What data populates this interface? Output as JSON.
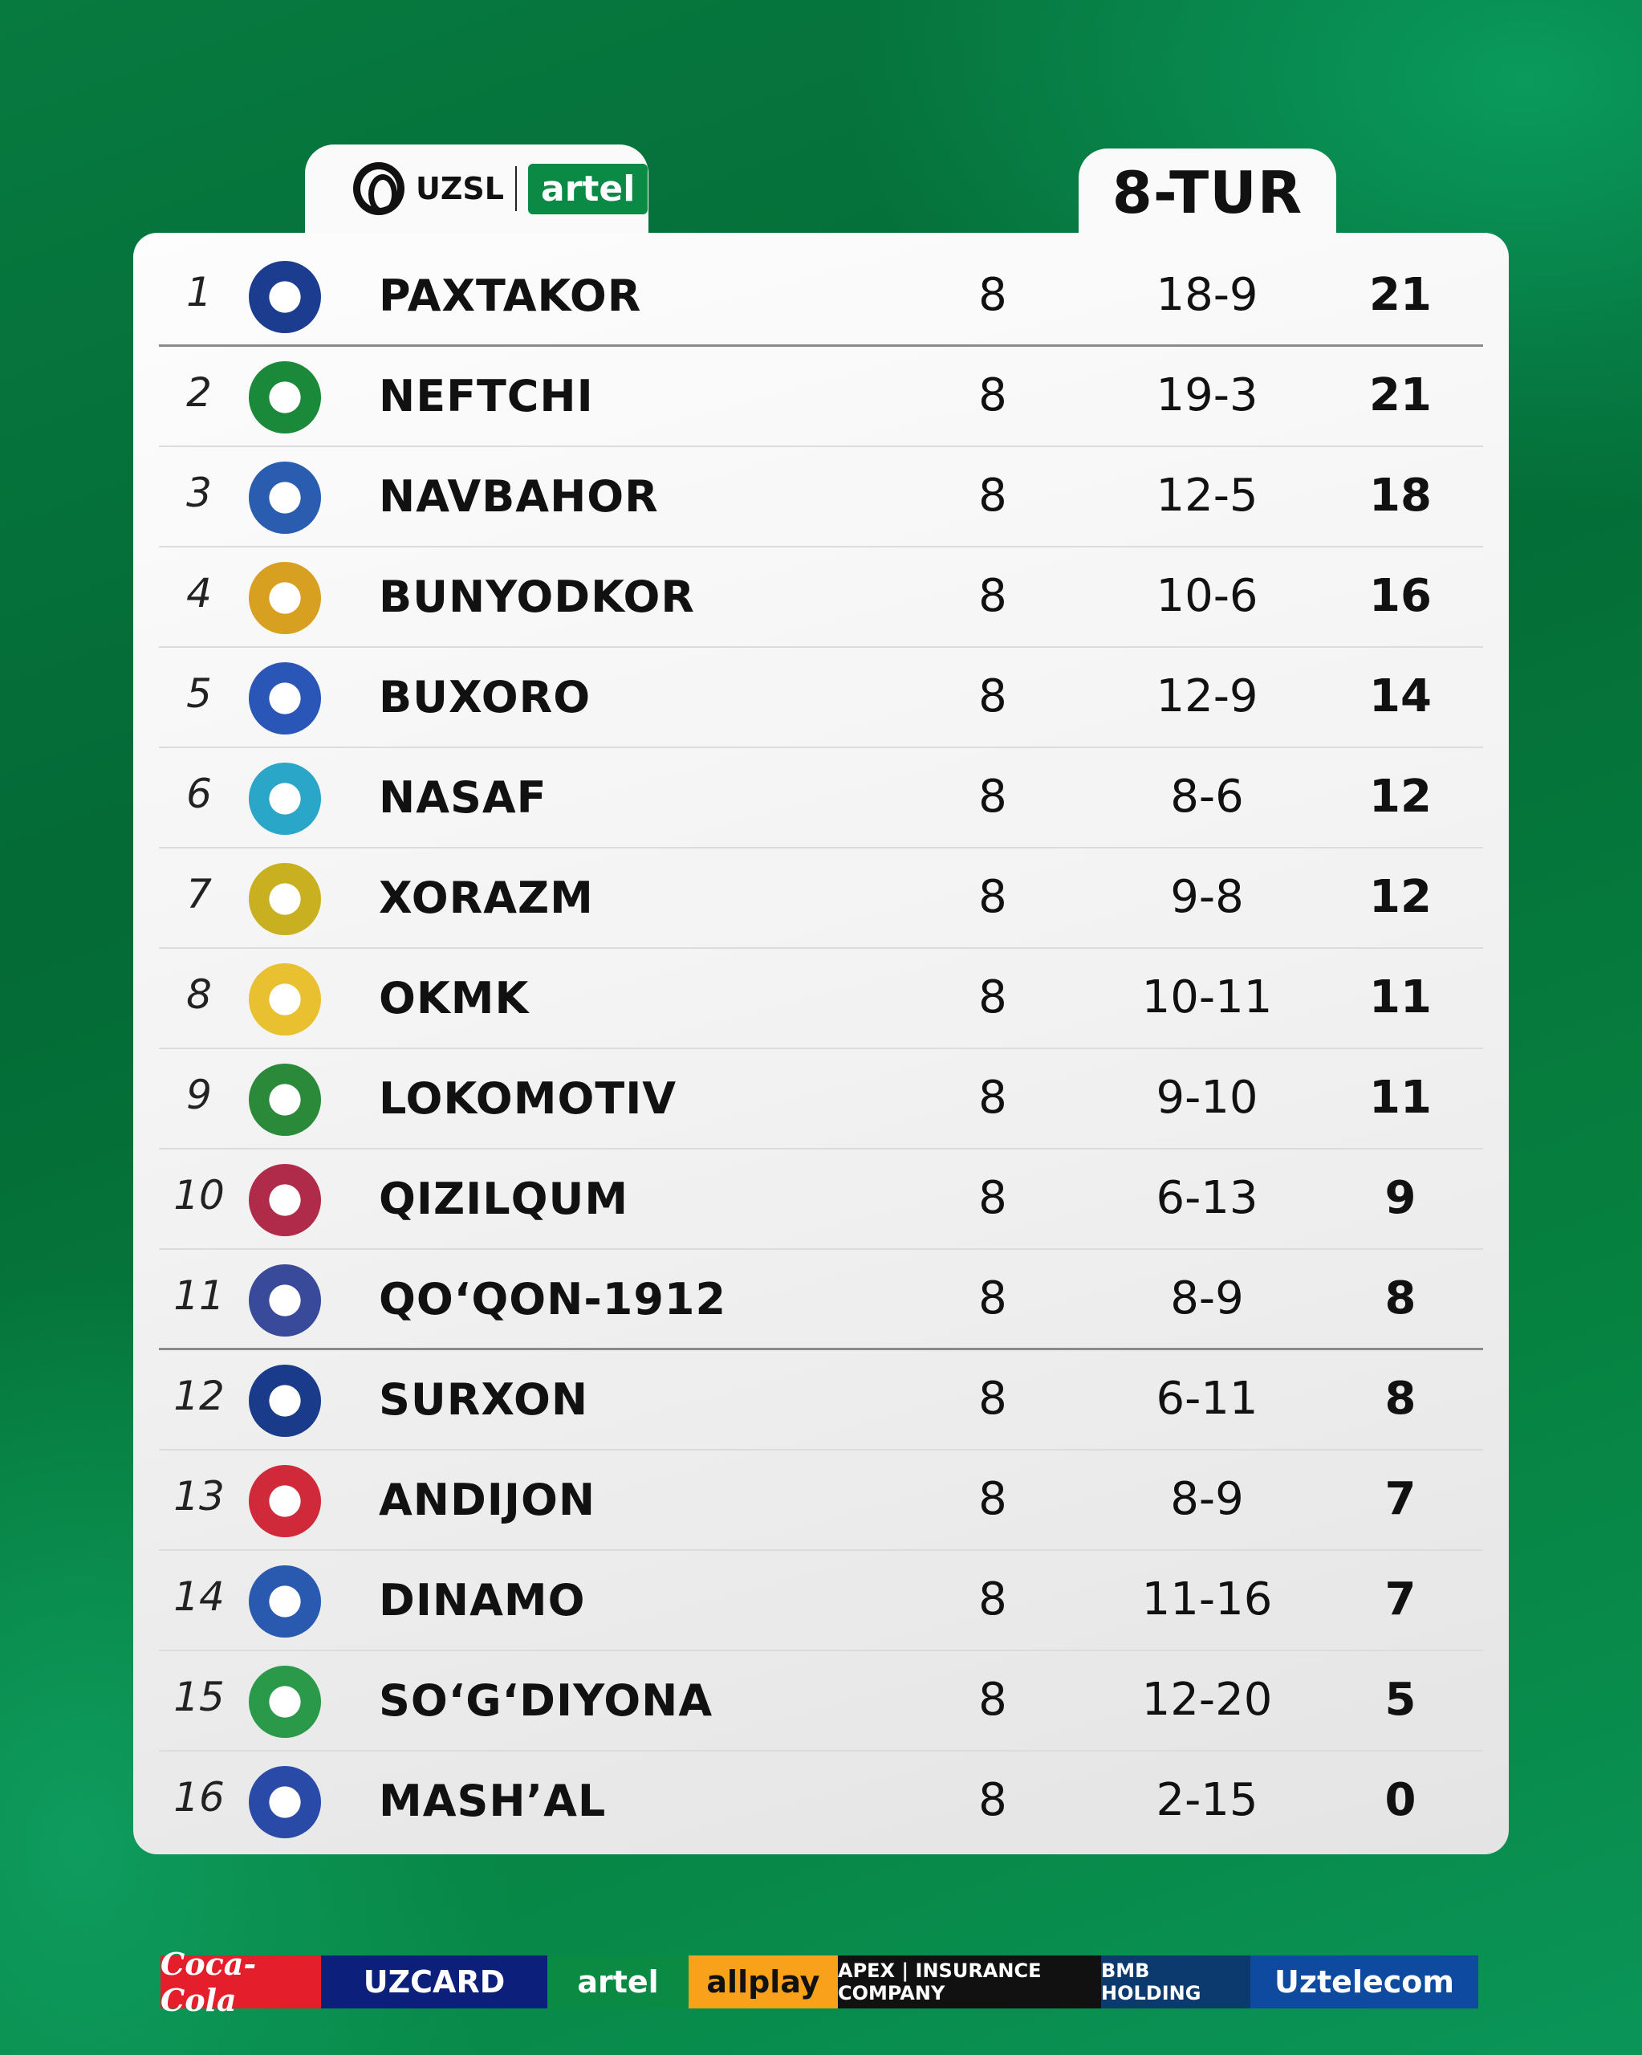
{
  "header": {
    "league_logo": "UZSL",
    "sponsor_logo": "artel",
    "round": "8-TUR"
  },
  "standings": [
    {
      "rank": "1",
      "team": "PAXTAKOR",
      "played": "8",
      "goals": "18-9",
      "points": "21",
      "color": "#1b3c8f"
    },
    {
      "rank": "2",
      "team": "NEFTCHI",
      "played": "8",
      "goals": "19-3",
      "points": "21",
      "color": "#1a8a3a"
    },
    {
      "rank": "3",
      "team": "NAVBAHOR",
      "played": "8",
      "goals": "12-5",
      "points": "18",
      "color": "#2a5db0"
    },
    {
      "rank": "4",
      "team": "BUNYODKOR",
      "played": "8",
      "goals": "10-6",
      "points": "16",
      "color": "#d8a020"
    },
    {
      "rank": "5",
      "team": "BUXORO",
      "played": "8",
      "goals": "12-9",
      "points": "14",
      "color": "#2a56b8"
    },
    {
      "rank": "6",
      "team": "NASAF",
      "played": "8",
      "goals": "8-6",
      "points": "12",
      "color": "#2aa6c8"
    },
    {
      "rank": "7",
      "team": "XORAZM",
      "played": "8",
      "goals": "9-8",
      "points": "12",
      "color": "#c8b020"
    },
    {
      "rank": "8",
      "team": "OKMK",
      "played": "8",
      "goals": "10-11",
      "points": "11",
      "color": "#e8c030"
    },
    {
      "rank": "9",
      "team": "LOKOMOTIV",
      "played": "8",
      "goals": "9-10",
      "points": "11",
      "color": "#2a8a3a"
    },
    {
      "rank": "10",
      "team": "QIZILQUM",
      "played": "8",
      "goals": "6-13",
      "points": "9",
      "color": "#b02a4a"
    },
    {
      "rank": "11",
      "team": "QO‘QON-1912",
      "played": "8",
      "goals": "8-9",
      "points": "8",
      "color": "#3a4a9a"
    },
    {
      "rank": "12",
      "team": "SURXON",
      "played": "8",
      "goals": "6-11",
      "points": "8",
      "color": "#1a3a8a"
    },
    {
      "rank": "13",
      "team": "ANDIJON",
      "played": "8",
      "goals": "8-9",
      "points": "7",
      "color": "#d02a3a"
    },
    {
      "rank": "14",
      "team": "DINAMO",
      "played": "8",
      "goals": "11-16",
      "points": "7",
      "color": "#2a5ab0"
    },
    {
      "rank": "15",
      "team": "SO‘G‘DIYONA",
      "played": "8",
      "goals": "12-20",
      "points": "5",
      "color": "#2a9a4a"
    },
    {
      "rank": "16",
      "team": "MASH’AL",
      "played": "8",
      "goals": "2-15",
      "points": "0",
      "color": "#2a4aa8"
    }
  ],
  "sponsors": [
    {
      "name": "Coca-Cola",
      "bg": "#e41e2b"
    },
    {
      "name": "UZCARD",
      "bg": "#0c1f7a"
    },
    {
      "name": "artel",
      "bg": "#0b8a44"
    },
    {
      "name": "allplay",
      "bg": "#f9a11b"
    },
    {
      "name": "APEX | INSURANCE COMPANY",
      "bg": "#111111"
    },
    {
      "name": "BMB HOLDING",
      "bg": "#0c3a6e"
    },
    {
      "name": "Uztelecom",
      "bg": "#0e4aa0"
    }
  ]
}
